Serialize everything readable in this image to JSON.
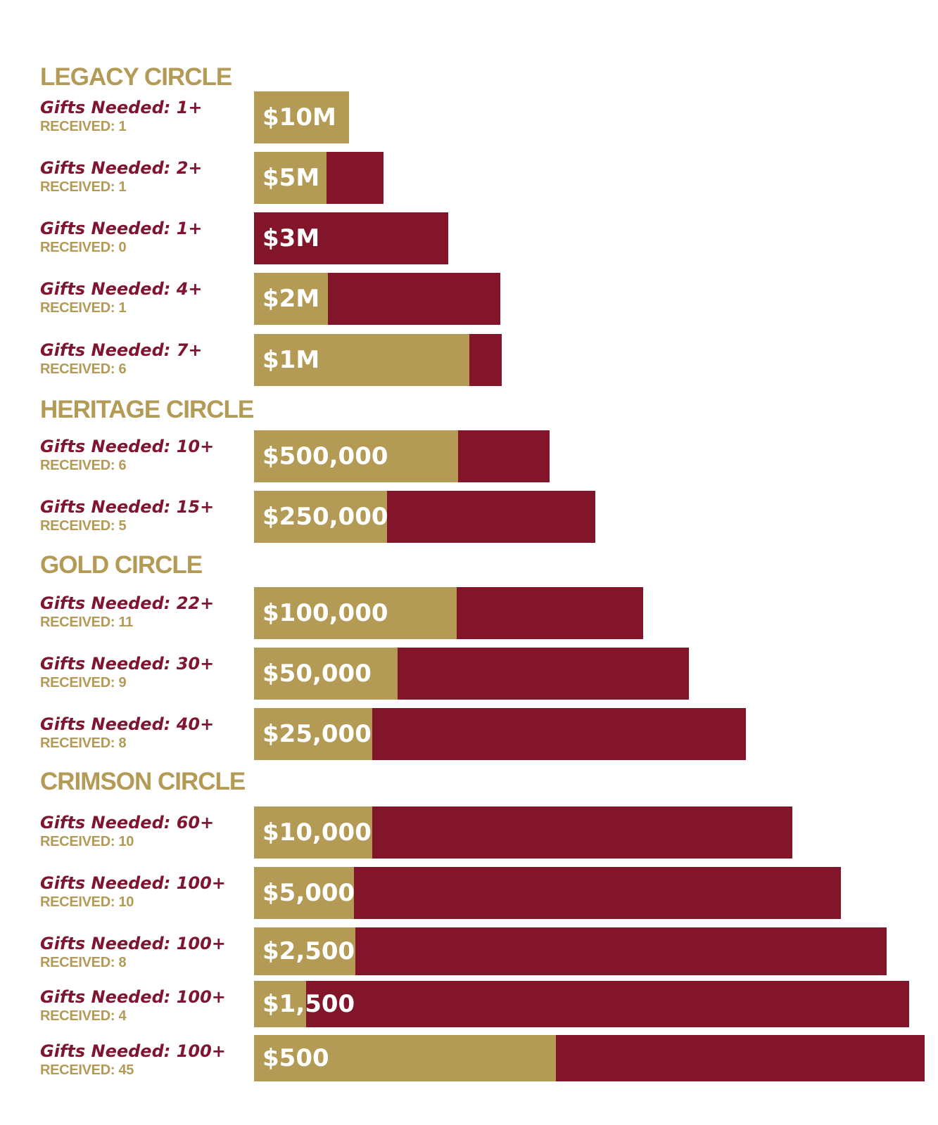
{
  "colors": {
    "gold": "#b39a55",
    "crimson": "#821529",
    "label_crimson": "#7f1530",
    "text_on_bar": "#ffffff"
  },
  "chart_data": {
    "type": "bar",
    "orientation": "horizontal",
    "title": "",
    "legend": "none",
    "encoding": "bar length = gift amount tier (decorative pyramid); gold share of bar = received / needed",
    "groups": [
      {
        "name": "LEGACY CIRCLE",
        "tiers": [
          {
            "amount": "$10M",
            "needed_label": "Gifts Needed:  1+",
            "received_label": "RECEIVED: 1",
            "needed": 1,
            "received": 1,
            "gold_fraction": 1.0
          },
          {
            "amount": "$5M",
            "needed_label": "Gifts Needed:  2+",
            "received_label": "RECEIVED: 1",
            "needed": 2,
            "received": 1,
            "gold_fraction": 0.56
          },
          {
            "amount": "$3M",
            "needed_label": "Gifts Needed:  1+",
            "received_label": "RECEIVED: 0",
            "needed": 1,
            "received": 0,
            "gold_fraction": 0.0
          },
          {
            "amount": "$2M",
            "needed_label": "Gifts Needed:  4+",
            "received_label": "RECEIVED: 1",
            "needed": 4,
            "received": 1,
            "gold_fraction": 0.3
          },
          {
            "amount": "$1M",
            "needed_label": "Gifts Needed:  7+",
            "received_label": "RECEIVED: 6",
            "needed": 7,
            "received": 6,
            "gold_fraction": 0.87
          }
        ]
      },
      {
        "name": "HERITAGE CIRCLE",
        "tiers": [
          {
            "amount": "$500,000",
            "needed_label": "Gifts Needed:  10+",
            "received_label": "RECEIVED: 6",
            "needed": 10,
            "received": 6,
            "gold_fraction": 0.69
          },
          {
            "amount": "$250,000",
            "needed_label": "Gifts Needed:  15+",
            "received_label": "RECEIVED: 5",
            "needed": 15,
            "received": 5,
            "gold_fraction": 0.39
          }
        ]
      },
      {
        "name": "GOLD CIRCLE",
        "tiers": [
          {
            "amount": "$100,000",
            "needed_label": "Gifts Needed:  22+",
            "received_label": "RECEIVED: 11",
            "needed": 22,
            "received": 11,
            "gold_fraction": 0.52
          },
          {
            "amount": "$50,000",
            "needed_label": "Gifts Needed:  30+",
            "received_label": "RECEIVED: 9",
            "needed": 30,
            "received": 9,
            "gold_fraction": 0.33
          },
          {
            "amount": "$25,000",
            "needed_label": "Gifts Needed:  40+",
            "received_label": "RECEIVED: 8",
            "needed": 40,
            "received": 8,
            "gold_fraction": 0.24
          }
        ]
      },
      {
        "name": "CRIMSON CIRCLE",
        "tiers": [
          {
            "amount": "$10,000",
            "needed_label": "Gifts Needed:  60+",
            "received_label": "RECEIVED: 10",
            "needed": 60,
            "received": 10,
            "gold_fraction": 0.22
          },
          {
            "amount": "$5,000",
            "needed_label": "Gifts Needed:  100+",
            "received_label": "RECEIVED: 10",
            "needed": 100,
            "received": 10,
            "gold_fraction": 0.17
          },
          {
            "amount": "$2,500",
            "needed_label": "Gifts Needed:  100+",
            "received_label": "RECEIVED: 8",
            "needed": 100,
            "received": 8,
            "gold_fraction": 0.16
          },
          {
            "amount": "$1,500",
            "needed_label": "Gifts Needed: 100+",
            "received_label": "RECEIVED: 4",
            "needed": 100,
            "received": 4,
            "gold_fraction": 0.08
          },
          {
            "amount": "$500",
            "needed_label": "Gifts Needed: 100+",
            "received_label": "RECEIVED: 45",
            "needed": 100,
            "received": 45,
            "gold_fraction": 0.45
          }
        ]
      }
    ]
  }
}
